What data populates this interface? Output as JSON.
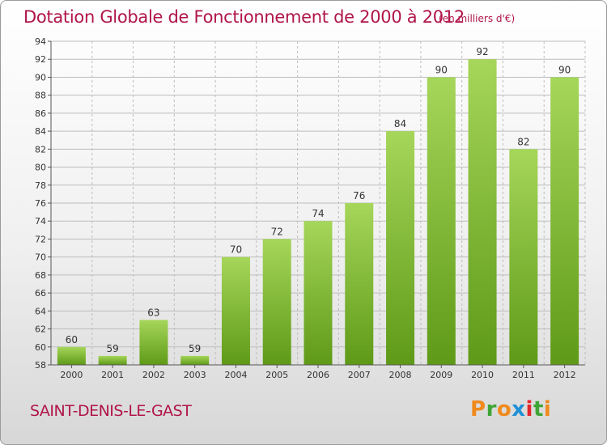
{
  "header": {
    "title": "Dotation Globale de Fonctionnement de 2000 à 2012",
    "unit": "(en milliers d'€)"
  },
  "footer": {
    "commune": "SAINT-DENIS-LE-GAST",
    "logo_text": "Proxiti",
    "logo_colors": [
      "#f08a1c",
      "#3fa535",
      "#f08a1c",
      "#1f8fd6",
      "#e3262d",
      "#3fa535",
      "#f08a1c"
    ]
  },
  "colors": {
    "title": "#b01548",
    "bar_top": "#a6d65a",
    "bar_bottom": "#5e9a17",
    "grid": "#bdbdbd"
  },
  "chart_data": {
    "type": "bar",
    "categories": [
      "2000",
      "2001",
      "2002",
      "2003",
      "2004",
      "2005",
      "2006",
      "2007",
      "2008",
      "2009",
      "2010",
      "2011",
      "2012"
    ],
    "values": [
      60,
      59,
      63,
      59,
      70,
      72,
      74,
      76,
      84,
      90,
      92,
      82,
      90
    ],
    "data_labels": [
      "60",
      "59",
      "63",
      "59",
      "70",
      "72",
      "74",
      "76",
      "84",
      "90",
      "92",
      "82",
      "90"
    ],
    "title": "Dotation Globale de Fonctionnement de 2000 à 2012",
    "xlabel": "",
    "ylabel": "",
    "ylim": [
      58,
      94
    ],
    "yticks": [
      58,
      60,
      62,
      64,
      66,
      68,
      70,
      72,
      74,
      76,
      78,
      80,
      82,
      84,
      86,
      88,
      90,
      92,
      94
    ],
    "grid": true
  }
}
